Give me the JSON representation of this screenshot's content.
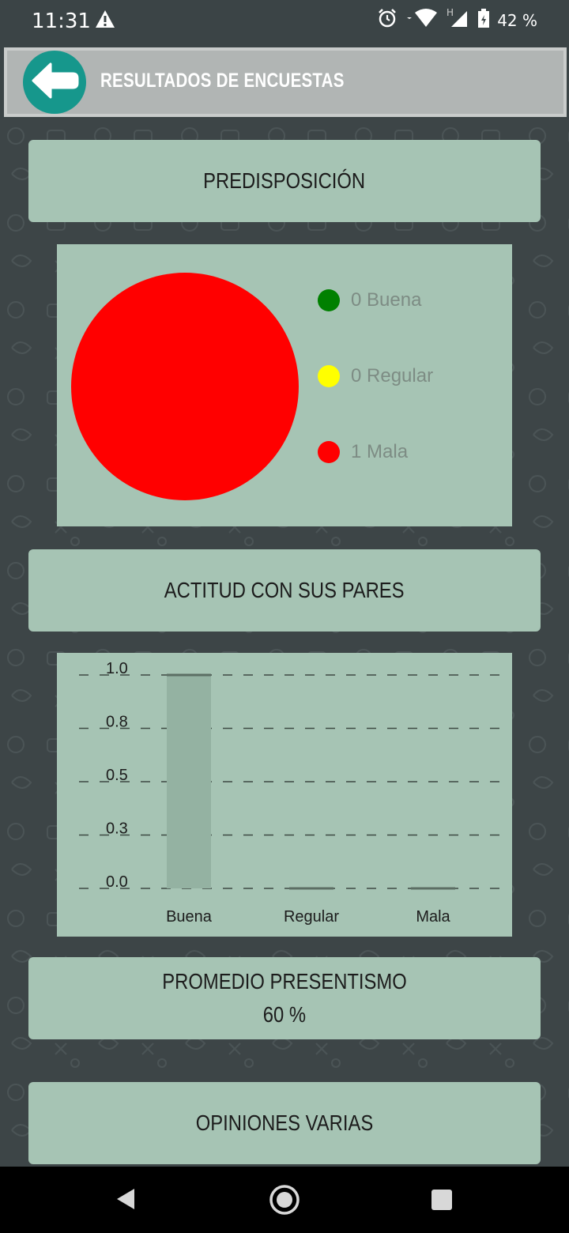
{
  "status_bar": {
    "time": "11:31",
    "battery": "42 %",
    "icons": [
      "warning-icon",
      "alarm-icon",
      "wifi-icon",
      "signal-icon",
      "battery-icon"
    ]
  },
  "app_bar": {
    "title": "RESULTADOS DE ENCUESTAS",
    "back_icon": "arrow-left-icon",
    "accent": "#16978c"
  },
  "sections": {
    "predisposicion": "PREDISPOSICIÓN",
    "actitud": "ACTITUD CON SUS PARES",
    "presentismo_title": "PROMEDIO PRESENTISMO",
    "presentismo_value": "60 %",
    "opiniones": "OPINIONES VARIAS"
  },
  "pie_legend": [
    {
      "label": "0 Buena",
      "color": "#008000"
    },
    {
      "label": "0 Regular",
      "color": "#ffff00"
    },
    {
      "label": "1 Mala",
      "color": "#ff0000"
    }
  ],
  "chart_data": [
    {
      "type": "pie",
      "categories": [
        "Buena",
        "Regular",
        "Mala"
      ],
      "values": [
        0,
        0,
        1
      ],
      "colors": [
        "#008000",
        "#ffff00",
        "#ff0000"
      ],
      "legend": "right"
    },
    {
      "type": "bar",
      "categories": [
        "Buena",
        "Regular",
        "Mala"
      ],
      "values": [
        1,
        0,
        0
      ],
      "yticks": [
        "0.0",
        "0.3",
        "0.5",
        "0.8",
        "1.0"
      ],
      "ylim": [
        0,
        1
      ],
      "grid": true
    }
  ],
  "nav": {
    "icons": [
      "back-triangle-icon",
      "home-circle-icon",
      "recents-square-icon"
    ]
  }
}
